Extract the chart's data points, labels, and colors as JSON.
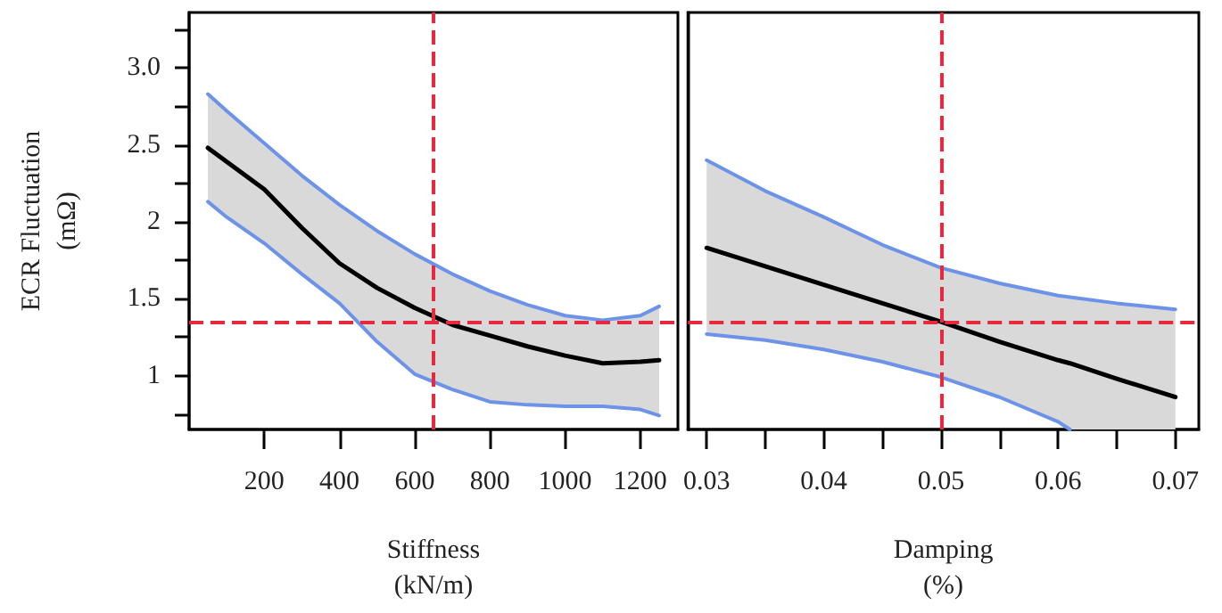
{
  "chart_data": [
    {
      "type": "line",
      "xlabel": "Stiffness\n(kN/m)",
      "ylabel": "ECR Fluctuation\n(mΩ)",
      "xlim": [
        0,
        1300
      ],
      "xticks": [
        200,
        400,
        600,
        800,
        1000,
        1200
      ],
      "ylim": [
        0.65,
        3.36
      ],
      "yticks": [
        {
          "value": 0.75,
          "label": null
        },
        1,
        {
          "value": 1.25,
          "label": null
        },
        1.5,
        {
          "value": 1.75,
          "label": null
        },
        2,
        {
          "value": 2.25,
          "label": null
        },
        2.5,
        {
          "value": 2.75,
          "label": null
        },
        {
          "value": 3,
          "label": "3.0"
        },
        {
          "value": 3.25,
          "label": null
        }
      ],
      "series": [
        {
          "color": "#000000",
          "x": [
            50,
            100,
            200,
            300,
            400,
            500,
            600,
            700,
            800,
            900,
            1000,
            1100,
            1200,
            1250
          ],
          "values": [
            2.48,
            2.39,
            2.21,
            1.96,
            1.73,
            1.57,
            1.44,
            1.33,
            1.26,
            1.19,
            1.13,
            1.08,
            1.09,
            1.1
          ],
          "upper": [
            2.83,
            2.72,
            2.51,
            2.3,
            2.11,
            1.94,
            1.79,
            1.66,
            1.55,
            1.46,
            1.39,
            1.36,
            1.39,
            1.45
          ],
          "lower": [
            2.13,
            2.03,
            1.86,
            1.66,
            1.47,
            1.22,
            1.01,
            0.91,
            0.83,
            0.81,
            0.8,
            0.8,
            0.78,
            0.74
          ]
        },
        {
          "color": "#6d93e8",
          "x": [
            50,
            100,
            200,
            300,
            400,
            500,
            600,
            700,
            800,
            900,
            1000,
            1100,
            1200,
            1250
          ],
          "values": [
            2.83,
            2.72,
            2.51,
            2.3,
            2.11,
            1.94,
            1.79,
            1.66,
            1.55,
            1.46,
            1.39,
            1.36,
            1.39,
            1.45
          ]
        },
        {
          "color": "#6d93e8",
          "x": [
            50,
            100,
            200,
            300,
            400,
            500,
            600,
            700,
            800,
            900,
            1000,
            1100,
            1200,
            1250
          ],
          "values": [
            2.13,
            2.03,
            1.86,
            1.66,
            1.47,
            1.22,
            1.01,
            0.91,
            0.83,
            0.81,
            0.8,
            0.8,
            0.78,
            0.74
          ]
        }
      ],
      "ref_lines": [
        {
          "axis": "x",
          "value": 650,
          "color": "#e8283c",
          "line_style": "dashed"
        },
        {
          "axis": "y",
          "value": 1.35,
          "color": "#e8283c",
          "line_style": "dashed"
        }
      ],
      "marker": "none"
    },
    {
      "type": "line",
      "xlabel": "Damping\n(%)",
      "xlim": [
        0.0284,
        0.072
      ],
      "xticks": [
        0.03,
        {
          "value": 0.035,
          "label": null
        },
        0.04,
        {
          "value": 0.045,
          "label": null
        },
        0.05,
        {
          "value": 0.055,
          "label": null
        },
        0.06,
        {
          "value": 0.065,
          "label": null
        },
        0.07
      ],
      "ylim": [
        0.65,
        3.36
      ],
      "tick_labels": "x",
      "series": [
        {
          "color": "#000000",
          "x": [
            0.03,
            0.035,
            0.04,
            0.045,
            0.05,
            0.055,
            0.06,
            0.061,
            0.065,
            0.07
          ],
          "values": [
            1.83,
            1.71,
            1.59,
            1.47,
            1.35,
            1.22,
            1.1,
            1.08,
            0.98,
            0.86
          ],
          "upper": [
            2.4,
            2.2,
            2.03,
            1.85,
            1.7,
            1.6,
            1.52,
            1.51,
            1.47,
            1.43
          ],
          "lower": [
            1.27,
            1.23,
            1.17,
            1.09,
            0.99,
            0.86,
            0.7,
            0.65,
            0.65,
            0.65
          ]
        },
        {
          "color": "#6d93e8",
          "x": [
            0.03,
            0.035,
            0.04,
            0.045,
            0.05,
            0.055,
            0.06,
            0.061,
            0.065,
            0.07
          ],
          "values": [
            2.4,
            2.2,
            2.03,
            1.85,
            1.7,
            1.6,
            1.52,
            1.51,
            1.47,
            1.43
          ]
        },
        {
          "color": "#6d93e8",
          "x": [
            0.03,
            0.035,
            0.04,
            0.045,
            0.05,
            0.055,
            0.06,
            0.061
          ],
          "values": [
            1.27,
            1.23,
            1.17,
            1.09,
            0.99,
            0.86,
            0.7,
            0.65
          ]
        }
      ],
      "ref_lines": [
        {
          "axis": "x",
          "value": 0.05,
          "color": "#e8283c",
          "line_style": "dashed"
        },
        {
          "axis": "y",
          "value": 1.35,
          "color": "#e8283c",
          "line_style": "dashed"
        }
      ],
      "marker": "none"
    }
  ]
}
